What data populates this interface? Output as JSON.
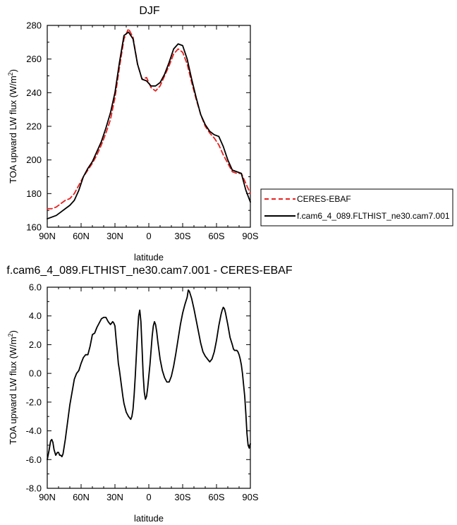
{
  "chart_data": [
    {
      "type": "line",
      "title": "DJF",
      "xlabel": "latitude",
      "ylabel": "TOA upward LW flux (W/m",
      "ylabel_sup": "2",
      "ylabel_end": ")",
      "xlim": [
        90,
        -90
      ],
      "ylim": [
        160,
        280
      ],
      "x_ticks": [
        90,
        60,
        30,
        0,
        -30,
        -60,
        -90
      ],
      "x_tick_labels": [
        "90N",
        "60N",
        "30N",
        "0",
        "30S",
        "60S",
        "90S"
      ],
      "y_ticks": [
        160,
        180,
        200,
        220,
        240,
        260,
        280
      ],
      "y_tick_labels": [
        "160",
        "180",
        "200",
        "220",
        "240",
        "260",
        "280"
      ],
      "legend": {
        "placement": "right",
        "entries": [
          "CERES-EBAF",
          "f.cam6_4_089.FLTHIST_ne30.cam7.001"
        ]
      },
      "series": [
        {
          "name": "CERES-EBAF",
          "color": "#e8211f",
          "dash": "dashed",
          "x": [
            90,
            86,
            82,
            78,
            74,
            70,
            66,
            62,
            58,
            54,
            50,
            46,
            42,
            38,
            34,
            30,
            26,
            22,
            18,
            14,
            10,
            6,
            2,
            -2,
            -6,
            -10,
            -14,
            -18,
            -22,
            -26,
            -30,
            -34,
            -38,
            -42,
            -46,
            -50,
            -54,
            -58,
            -62,
            -66,
            -70,
            -74,
            -78,
            -82,
            -86,
            -90
          ],
          "y": [
            171,
            171,
            172,
            174,
            176,
            177,
            180,
            185,
            190,
            194,
            198,
            203,
            209,
            216,
            224,
            237,
            255,
            272,
            278,
            273,
            257,
            248,
            249,
            243,
            241,
            244,
            250,
            256,
            263,
            266,
            264,
            257,
            246,
            236,
            227,
            220,
            216,
            213,
            209,
            203,
            198,
            193,
            192,
            192,
            186,
            180
          ]
        },
        {
          "name": "f.cam6_4_089.FLTHIST_ne30.cam7.001",
          "color": "#000000",
          "dash": "solid",
          "x": [
            90,
            86,
            82,
            78,
            74,
            70,
            66,
            62,
            58,
            54,
            50,
            46,
            42,
            38,
            34,
            30,
            26,
            22,
            18,
            14,
            10,
            6,
            2,
            -2,
            -6,
            -10,
            -14,
            -18,
            -22,
            -26,
            -30,
            -34,
            -38,
            -42,
            -46,
            -50,
            -54,
            -58,
            -62,
            -66,
            -70,
            -74,
            -78,
            -82,
            -86,
            -90
          ],
          "y": [
            165,
            166,
            167,
            169,
            171,
            173,
            176,
            182,
            190,
            195,
            199,
            205,
            211,
            219,
            228,
            240,
            258,
            274,
            276,
            272,
            257,
            248,
            247,
            244,
            244,
            246,
            251,
            258,
            266,
            269,
            268,
            260,
            248,
            237,
            227,
            221,
            217,
            215,
            214,
            208,
            200,
            194,
            193,
            192,
            182,
            175
          ]
        }
      ]
    },
    {
      "type": "line",
      "title": "f.cam6_4_089.FLTHIST_ne30.cam7.001 - CERES-EBAF",
      "xlabel": "latitude",
      "ylabel": "TOA upward LW flux (W/m",
      "ylabel_sup": "2",
      "ylabel_end": ")",
      "xlim": [
        90,
        -90
      ],
      "ylim": [
        -8,
        6
      ],
      "x_ticks": [
        90,
        60,
        30,
        0,
        -30,
        -60,
        -90
      ],
      "x_tick_labels": [
        "90N",
        "60N",
        "30N",
        "0",
        "30S",
        "60S",
        "90S"
      ],
      "y_ticks": [
        -8,
        -6,
        -4,
        -2,
        0,
        2,
        4,
        6
      ],
      "y_tick_labels": [
        "-8.0",
        "-6.0",
        "-4.0",
        "-2.0",
        "0.0",
        "2.0",
        "4.0",
        "6.0"
      ],
      "series": [
        {
          "color": "#000000",
          "dash": "solid",
          "x": [
            90,
            88.5,
            87,
            86,
            85,
            84,
            82.5,
            81,
            80,
            79,
            78,
            77,
            76,
            74,
            72,
            70,
            68,
            66,
            64,
            62,
            60,
            58,
            56,
            54,
            52,
            50,
            48,
            46,
            44,
            42,
            40,
            38,
            36,
            34,
            33,
            32,
            31,
            30,
            29,
            28,
            27,
            26,
            25,
            24,
            23,
            22,
            20,
            18,
            16,
            15,
            14,
            13,
            12,
            11,
            10,
            9,
            8,
            7,
            6,
            5,
            4,
            3,
            2,
            1,
            0,
            -1,
            -2,
            -3,
            -4,
            -5,
            -6,
            -7,
            -8,
            -9,
            -10,
            -12,
            -14,
            -16,
            -18,
            -20,
            -22,
            -24,
            -26,
            -28,
            -30,
            -32,
            -34,
            -35,
            -36,
            -38,
            -40,
            -42,
            -44,
            -46,
            -48,
            -50,
            -52,
            -54,
            -56,
            -58,
            -60,
            -62,
            -64,
            -65,
            -66,
            -67,
            -68,
            -70,
            -72,
            -74,
            -75,
            -76,
            -77,
            -78,
            -79,
            -80,
            -81,
            -82,
            -83,
            -84,
            -85,
            -86,
            -87,
            -88,
            -89,
            -90
          ],
          "y": [
            -6.0,
            -5.4,
            -4.7,
            -4.6,
            -4.8,
            -5.3,
            -5.7,
            -5.5,
            -5.5,
            -5.7,
            -5.7,
            -5.8,
            -5.6,
            -4.6,
            -3.4,
            -2.2,
            -1.3,
            -0.4,
            0.0,
            0.2,
            0.7,
            1.1,
            1.3,
            1.3,
            1.9,
            2.7,
            2.8,
            3.2,
            3.5,
            3.8,
            3.9,
            3.9,
            3.6,
            3.4,
            3.5,
            3.6,
            3.5,
            3.3,
            2.4,
            1.6,
            0.7,
            0.2,
            -0.4,
            -1.0,
            -1.6,
            -2.1,
            -2.7,
            -3.0,
            -3.2,
            -3.0,
            -2.5,
            -1.5,
            -0.2,
            1.3,
            2.8,
            4.0,
            4.4,
            3.6,
            1.8,
            -0.1,
            -1.3,
            -1.8,
            -1.6,
            -1.0,
            -0.2,
            0.6,
            1.6,
            2.6,
            3.3,
            3.6,
            3.4,
            2.9,
            2.2,
            1.6,
            1.0,
            0.2,
            -0.3,
            -0.6,
            -0.6,
            -0.2,
            0.5,
            1.4,
            2.4,
            3.4,
            4.2,
            4.8,
            5.3,
            5.8,
            5.7,
            5.2,
            4.5,
            3.7,
            2.9,
            2.1,
            1.5,
            1.2,
            1.0,
            0.8,
            1.0,
            1.5,
            2.3,
            3.3,
            4.1,
            4.4,
            4.6,
            4.5,
            4.2,
            3.4,
            2.5,
            2.0,
            1.7,
            1.6,
            1.6,
            1.6,
            1.5,
            1.3,
            1.0,
            0.6,
            0.0,
            -0.8,
            -1.6,
            -2.8,
            -4.2,
            -5.0,
            -5.2,
            -4.9
          ]
        }
      ]
    }
  ]
}
